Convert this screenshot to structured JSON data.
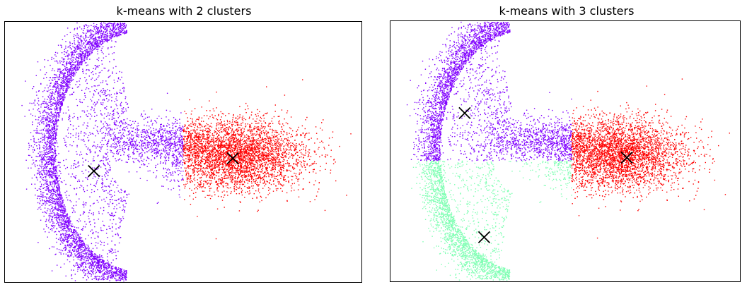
{
  "chart_data": [
    {
      "type": "scatter",
      "title": "k-means with 2 clusters",
      "xlabel": "",
      "ylabel": "",
      "grid": false,
      "axes_ticks": false,
      "clusters": [
        {
          "color": "#8000ff",
          "regions": [
            "left arc",
            "middle band",
            "lower arc"
          ]
        },
        {
          "color": "#ff0000",
          "regions": [
            "right horizontal cloud"
          ]
        }
      ],
      "centroids": [
        {
          "marker": "x",
          "color": "#000000",
          "x": -2.7,
          "y": -0.6
        },
        {
          "marker": "x",
          "color": "#000000",
          "x": 1.5,
          "y": -0.2
        }
      ]
    },
    {
      "type": "scatter",
      "title": "k-means with 3 clusters",
      "xlabel": "",
      "ylabel": "",
      "grid": false,
      "axes_ticks": false,
      "clusters": [
        {
          "color": "#8000ff",
          "regions": [
            "upper left arc",
            "middle band"
          ]
        },
        {
          "color": "#ff0000",
          "regions": [
            "right horizontal cloud"
          ]
        },
        {
          "color": "#80ffb4",
          "regions": [
            "lower left arc"
          ]
        }
      ],
      "centroids": [
        {
          "marker": "x",
          "color": "#000000",
          "x": -3.1,
          "y": 1.2
        },
        {
          "marker": "x",
          "color": "#000000",
          "x": 1.9,
          "y": -0.2
        },
        {
          "marker": "x",
          "color": "#000000",
          "x": -2.5,
          "y": -2.7
        }
      ]
    }
  ]
}
